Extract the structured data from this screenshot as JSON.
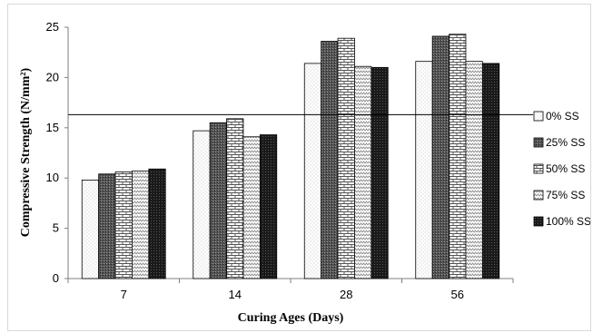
{
  "chart_data": {
    "type": "bar",
    "xlabel": "Curing Ages (Days)",
    "ylabel": "Compressive Strength (N/mm²)",
    "categories": [
      "7",
      "14",
      "28",
      "56"
    ],
    "ylim": [
      0,
      25
    ],
    "yticks": [
      0,
      5,
      10,
      15,
      20,
      25
    ],
    "grid": false,
    "legend_position": "right",
    "reference_line": 16.3,
    "series": [
      {
        "name": "0% SS",
        "values": [
          9.8,
          14.7,
          21.4,
          21.6
        ],
        "pattern": "dots-light"
      },
      {
        "name": "25% SS",
        "values": [
          10.4,
          15.5,
          23.6,
          24.1
        ],
        "pattern": "dark-stipple"
      },
      {
        "name": "50% SS",
        "values": [
          10.6,
          15.9,
          23.9,
          24.3
        ],
        "pattern": "brick"
      },
      {
        "name": "75% SS",
        "values": [
          10.7,
          14.1,
          21.1,
          21.6
        ],
        "pattern": "zigzag"
      },
      {
        "name": "100% SS",
        "values": [
          10.9,
          14.3,
          21.0,
          21.4
        ],
        "pattern": "dark-dots"
      }
    ]
  }
}
